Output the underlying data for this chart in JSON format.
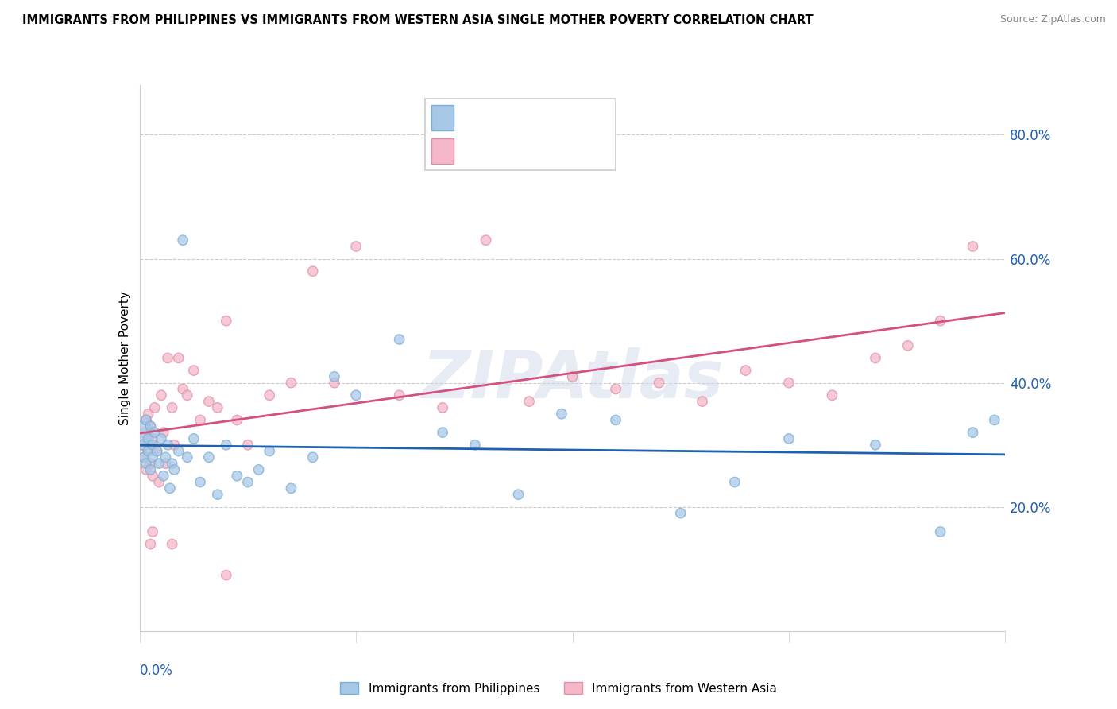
{
  "title": "IMMIGRANTS FROM PHILIPPINES VS IMMIGRANTS FROM WESTERN ASIA SINGLE MOTHER POVERTY CORRELATION CHART",
  "source": "Source: ZipAtlas.com",
  "ylabel": "Single Mother Poverty",
  "right_yticklabels": [
    "",
    "20.0%",
    "40.0%",
    "60.0%",
    "80.0%"
  ],
  "right_ytick_vals": [
    0.0,
    0.2,
    0.4,
    0.6,
    0.8
  ],
  "xlim": [
    0.0,
    0.4
  ],
  "ylim": [
    0.0,
    0.88
  ],
  "color_blue_fill": "#a8c8e8",
  "color_blue_edge": "#7aafd4",
  "color_blue_line": "#2060b0",
  "color_blue_text": "#2060b0",
  "color_pink_fill": "#f4b8c8",
  "color_pink_edge": "#e090a8",
  "color_pink_line": "#d45080",
  "color_pink_text": "#d45080",
  "watermark": "ZIPAtlas",
  "philippines_x": [
    0.001,
    0.002,
    0.002,
    0.003,
    0.003,
    0.004,
    0.004,
    0.005,
    0.005,
    0.006,
    0.006,
    0.007,
    0.008,
    0.009,
    0.01,
    0.011,
    0.012,
    0.013,
    0.014,
    0.015,
    0.016,
    0.018,
    0.02,
    0.022,
    0.025,
    0.028,
    0.032,
    0.036,
    0.04,
    0.045,
    0.05,
    0.055,
    0.06,
    0.07,
    0.08,
    0.09,
    0.1,
    0.12,
    0.14,
    0.155,
    0.175,
    0.195,
    0.22,
    0.25,
    0.275,
    0.3,
    0.34,
    0.37,
    0.385,
    0.395
  ],
  "philippines_y": [
    0.32,
    0.3,
    0.28,
    0.34,
    0.27,
    0.31,
    0.29,
    0.33,
    0.26,
    0.3,
    0.28,
    0.32,
    0.29,
    0.27,
    0.31,
    0.25,
    0.28,
    0.3,
    0.23,
    0.27,
    0.26,
    0.29,
    0.63,
    0.28,
    0.31,
    0.24,
    0.28,
    0.22,
    0.3,
    0.25,
    0.24,
    0.26,
    0.29,
    0.23,
    0.28,
    0.41,
    0.38,
    0.47,
    0.32,
    0.3,
    0.22,
    0.35,
    0.34,
    0.19,
    0.24,
    0.31,
    0.3,
    0.16,
    0.32,
    0.34
  ],
  "philippines_sizes": [
    400,
    100,
    80,
    80,
    80,
    80,
    80,
    80,
    80,
    80,
    80,
    80,
    80,
    80,
    80,
    80,
    80,
    80,
    80,
    80,
    80,
    80,
    80,
    80,
    80,
    80,
    80,
    80,
    80,
    80,
    80,
    80,
    80,
    80,
    80,
    80,
    80,
    80,
    80,
    80,
    80,
    80,
    80,
    80,
    80,
    80,
    80,
    80,
    80,
    80
  ],
  "western_x": [
    0.001,
    0.002,
    0.002,
    0.003,
    0.003,
    0.004,
    0.004,
    0.005,
    0.005,
    0.006,
    0.006,
    0.007,
    0.008,
    0.009,
    0.01,
    0.011,
    0.012,
    0.013,
    0.015,
    0.016,
    0.018,
    0.02,
    0.022,
    0.025,
    0.028,
    0.032,
    0.036,
    0.04,
    0.045,
    0.05,
    0.06,
    0.07,
    0.08,
    0.09,
    0.1,
    0.12,
    0.14,
    0.16,
    0.18,
    0.2,
    0.22,
    0.24,
    0.26,
    0.28,
    0.3,
    0.32,
    0.34,
    0.355,
    0.37,
    0.385,
    0.005,
    0.006,
    0.015,
    0.04
  ],
  "western_y": [
    0.3,
    0.28,
    0.32,
    0.26,
    0.34,
    0.35,
    0.29,
    0.27,
    0.33,
    0.31,
    0.25,
    0.36,
    0.29,
    0.24,
    0.38,
    0.32,
    0.27,
    0.44,
    0.36,
    0.3,
    0.44,
    0.39,
    0.38,
    0.42,
    0.34,
    0.37,
    0.36,
    0.5,
    0.34,
    0.3,
    0.38,
    0.4,
    0.58,
    0.4,
    0.62,
    0.38,
    0.36,
    0.63,
    0.37,
    0.41,
    0.39,
    0.4,
    0.37,
    0.42,
    0.4,
    0.38,
    0.44,
    0.46,
    0.5,
    0.62,
    0.14,
    0.16,
    0.14,
    0.09
  ],
  "western_sizes": [
    80,
    80,
    80,
    80,
    80,
    80,
    80,
    80,
    80,
    80,
    80,
    80,
    80,
    80,
    80,
    80,
    80,
    80,
    80,
    80,
    80,
    80,
    80,
    80,
    80,
    80,
    80,
    80,
    80,
    80,
    80,
    80,
    80,
    80,
    80,
    80,
    80,
    80,
    80,
    80,
    80,
    80,
    80,
    80,
    80,
    80,
    80,
    80,
    80,
    80,
    80,
    80,
    80,
    80
  ]
}
